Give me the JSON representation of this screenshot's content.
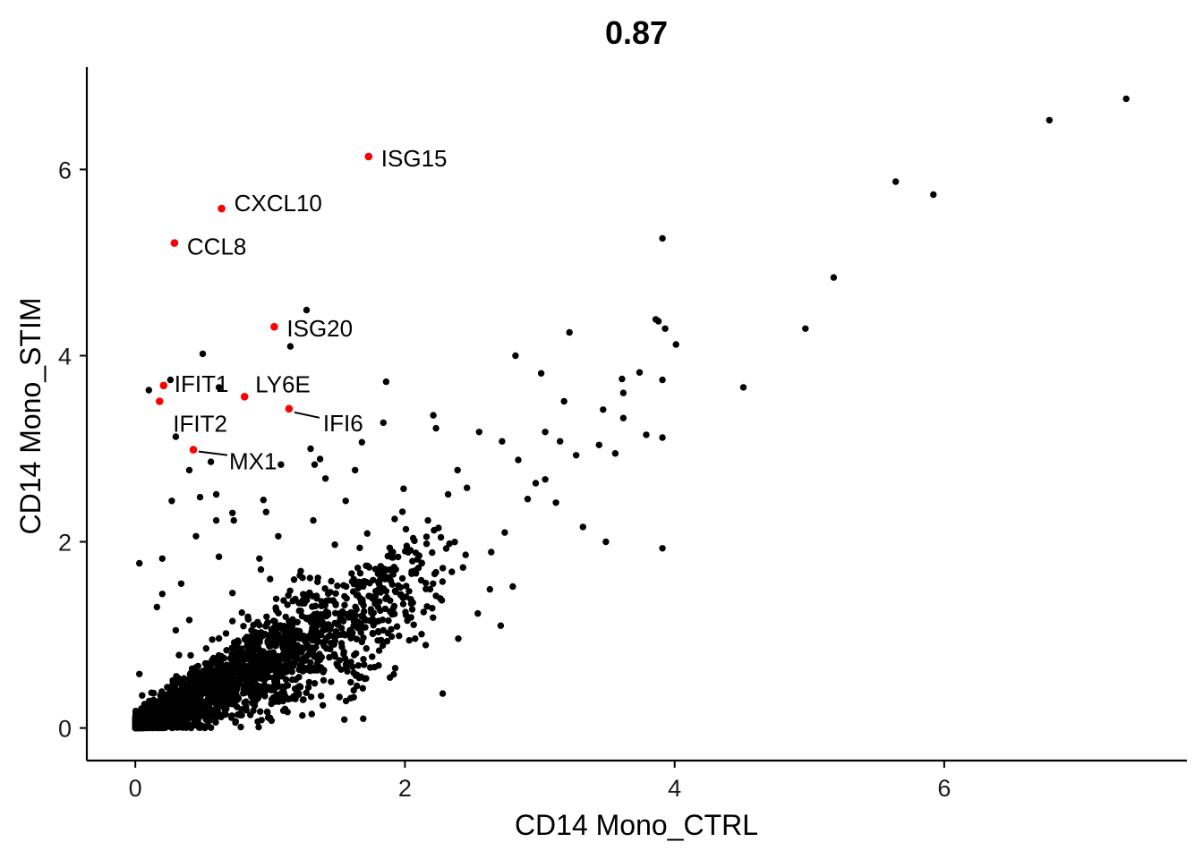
{
  "chart_data": {
    "type": "scatter",
    "title": "0.87",
    "xlabel": "CD14 Mono_CTRL",
    "ylabel": "CD14 Mono_STIM",
    "xlim": [
      -0.36,
      7.8
    ],
    "ylim": [
      -0.35,
      7.1
    ],
    "x_ticks": [
      0,
      2,
      4,
      6
    ],
    "y_ticks": [
      0,
      2,
      4,
      6
    ],
    "grid": false,
    "legend": "none",
    "colors": {
      "background": "#ffffff",
      "point": "#000000",
      "highlight": "#ff0000",
      "axis": "#000000"
    },
    "highlighted": [
      {
        "label": "ISG15",
        "x": 1.73,
        "y": 6.14
      },
      {
        "label": "CXCL10",
        "x": 0.64,
        "y": 5.58
      },
      {
        "label": "CCL8",
        "x": 0.29,
        "y": 5.21
      },
      {
        "label": "ISG20",
        "x": 1.03,
        "y": 4.31
      },
      {
        "label": "IFIT1",
        "x": 0.21,
        "y": 3.68
      },
      {
        "label": "LY6E",
        "x": 0.81,
        "y": 3.56
      },
      {
        "label": "IFIT2",
        "x": 0.18,
        "y": 3.51
      },
      {
        "label": "IFI6",
        "x": 1.14,
        "y": 3.43
      },
      {
        "label": "MX1",
        "x": 0.43,
        "y": 2.99
      }
    ],
    "points": [
      [
        7.35,
        6.76
      ],
      [
        6.78,
        6.53
      ],
      [
        5.64,
        5.87
      ],
      [
        5.92,
        5.73
      ],
      [
        3.91,
        5.26
      ],
      [
        5.18,
        4.84
      ],
      [
        4.97,
        4.29
      ],
      [
        4.51,
        3.66
      ],
      [
        4.01,
        4.12
      ],
      [
        3.86,
        4.39
      ],
      [
        3.88,
        4.37
      ],
      [
        3.93,
        4.29
      ],
      [
        3.91,
        3.74
      ],
      [
        3.91,
        3.12
      ],
      [
        3.91,
        1.93
      ],
      [
        3.49,
        2.0
      ],
      [
        3.22,
        4.25
      ],
      [
        2.82,
        4.0
      ],
      [
        3.01,
        3.81
      ],
      [
        3.61,
        3.75
      ],
      [
        3.74,
        3.82
      ],
      [
        3.62,
        3.6
      ],
      [
        3.47,
        3.42
      ],
      [
        1.27,
        4.49
      ],
      [
        1.15,
        4.1
      ],
      [
        0.5,
        4.02
      ],
      [
        0.62,
        3.66
      ],
      [
        0.1,
        3.63
      ],
      [
        0.26,
        3.74
      ],
      [
        0.3,
        3.13
      ],
      [
        1.86,
        3.72
      ],
      [
        1.68,
        3.07
      ],
      [
        1.84,
        3.28
      ],
      [
        0.4,
        2.77
      ],
      [
        0.56,
        2.86
      ],
      [
        1.08,
        2.83
      ],
      [
        1.3,
        3.0
      ],
      [
        1.37,
        2.89
      ],
      [
        1.33,
        2.83
      ],
      [
        1.63,
        2.77
      ],
      [
        0.27,
        2.44
      ],
      [
        0.95,
        2.45
      ],
      [
        0.48,
        2.48
      ],
      [
        0.6,
        2.51
      ],
      [
        0.72,
        2.31
      ],
      [
        0.6,
        2.23
      ],
      [
        0.73,
        2.23
      ],
      [
        0.97,
        2.32
      ],
      [
        0.45,
        2.06
      ],
      [
        2.21,
        3.36
      ],
      [
        2.23,
        3.22
      ],
      [
        2.55,
        3.18
      ],
      [
        2.72,
        3.08
      ],
      [
        2.84,
        2.88
      ],
      [
        3.27,
        2.93
      ],
      [
        2.97,
        2.63
      ],
      [
        3.12,
        2.42
      ],
      [
        3.32,
        2.16
      ],
      [
        2.64,
        1.89
      ],
      [
        2.74,
        2.1
      ],
      [
        1.99,
        2.57
      ],
      [
        2.32,
        2.51
      ],
      [
        2.17,
        2.23
      ],
      [
        1.72,
        2.09
      ],
      [
        2.04,
        1.91
      ],
      [
        1.65,
        1.72
      ],
      [
        1.82,
        1.62
      ],
      [
        2.63,
        1.49
      ],
      [
        2.8,
        1.52
      ],
      [
        2.23,
        1.42
      ],
      [
        2.54,
        1.23
      ],
      [
        2.71,
        1.1
      ],
      [
        2.28,
        0.37
      ],
      [
        1.49,
        0.99
      ],
      [
        1.84,
        1.05
      ],
      [
        1.65,
        1.14
      ],
      [
        1.89,
        1.25
      ],
      [
        1.4,
        0.88
      ],
      [
        1.35,
        0.62
      ],
      [
        1.19,
        0.52
      ],
      [
        1.62,
        0.33
      ],
      [
        1.55,
        0.09
      ],
      [
        1.69,
        0.1
      ],
      [
        0.92,
        1.82
      ],
      [
        0.62,
        1.84
      ],
      [
        0.34,
        1.55
      ],
      [
        0.2,
        1.44
      ],
      [
        0.2,
        1.82
      ],
      [
        0.03,
        1.77
      ],
      [
        0.16,
        1.3
      ],
      [
        0.3,
        1.05
      ],
      [
        0.72,
        1.45
      ],
      [
        1.0,
        1.6
      ],
      [
        1.1,
        1.37
      ],
      [
        1.22,
        1.64
      ],
      [
        0.85,
        0.88
      ],
      [
        0.77,
        0.62
      ],
      [
        1.12,
        0.32
      ],
      [
        0.98,
        0.17
      ],
      [
        0.03,
        0.58
      ],
      [
        0.05,
        0.35
      ],
      [
        0.12,
        0.19
      ],
      [
        0.21,
        0.29
      ],
      [
        0.36,
        0.46
      ],
      [
        0.49,
        0.51
      ],
      [
        0.64,
        0.36
      ],
      [
        0.82,
        0.22
      ],
      [
        0.91,
        0.64
      ],
      [
        0.4,
        1.16
      ],
      [
        0.57,
        0.95
      ],
      [
        0.79,
        1.24
      ],
      [
        1.28,
        1.18
      ],
      [
        3.04,
        3.18
      ],
      [
        3.18,
        3.51
      ],
      [
        3.44,
        3.04
      ],
      [
        3.62,
        3.33
      ],
      [
        3.79,
        3.15
      ],
      [
        2.39,
        2.77
      ],
      [
        2.46,
        2.58
      ],
      [
        3.15,
        3.08
      ],
      [
        2.91,
        2.46
      ],
      [
        3.04,
        2.67
      ],
      [
        3.56,
        2.95
      ],
      [
        1.41,
        2.68
      ],
      [
        1.56,
        2.44
      ],
      [
        1.06,
        2.06
      ],
      [
        1.32,
        2.23
      ],
      [
        1.48,
        1.97
      ],
      [
        2.1,
        1.72
      ],
      [
        2.33,
        1.98
      ],
      [
        2.45,
        1.86
      ],
      [
        1.76,
        1.39
      ],
      [
        1.95,
        1.53
      ]
    ]
  }
}
